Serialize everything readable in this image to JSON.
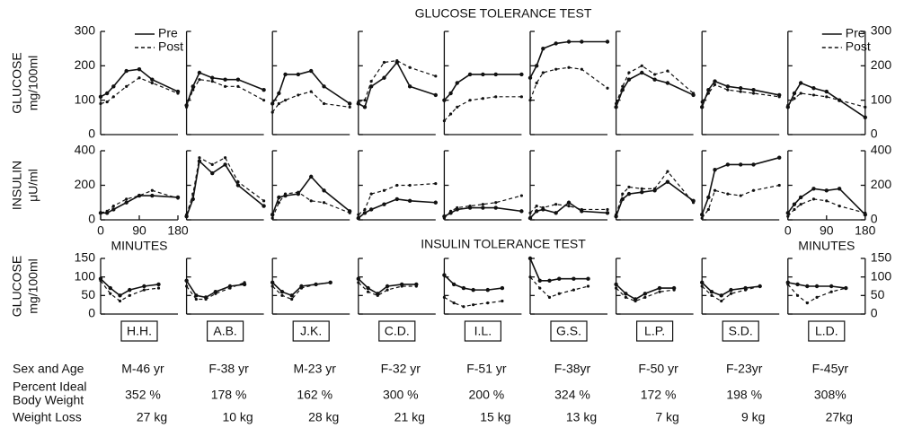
{
  "chart_data": {
    "type": "line",
    "title": "GLUCOSE TOLERANCE TEST",
    "title2": "INSULIN TOLERANCE TEST",
    "x_label": "MINUTES",
    "legend": [
      {
        "name": "Pre",
        "style": "solid"
      },
      {
        "name": "Post",
        "style": "dashed"
      }
    ],
    "rows": [
      {
        "y_label": [
          "GLUCOSE",
          "mg/100ml"
        ],
        "ylim": [
          0,
          300
        ],
        "yticks": [
          0,
          100,
          200,
          300
        ],
        "x": [
          0,
          15,
          30,
          60,
          90,
          120,
          180
        ],
        "xlim": [
          0,
          180
        ]
      },
      {
        "y_label": [
          "INSULIN",
          "μU/ml"
        ],
        "ylim": [
          0,
          400
        ],
        "yticks": [
          0,
          200,
          400
        ],
        "x": [
          0,
          15,
          30,
          60,
          90,
          120,
          180
        ],
        "xlim": [
          0,
          180
        ],
        "xticks": [
          0,
          90,
          180
        ]
      },
      {
        "y_label": [
          "GLUCOSE",
          "mg/100ml"
        ],
        "ylim": [
          0,
          150
        ],
        "yticks": [
          0,
          50,
          100,
          150
        ],
        "x": [
          0,
          10,
          20,
          30,
          45,
          60
        ],
        "xlim": [
          0,
          80
        ]
      }
    ],
    "table_labels": {
      "sex_age": "Sex and Age",
      "ibw": [
        "Percent Ideal",
        "Body Weight"
      ],
      "weight_loss": "Weight Loss"
    },
    "subjects": [
      {
        "name": "H.H.",
        "sex_age": "M-46 yr",
        "ibw": "352 %",
        "weight_loss": "27 kg",
        "panels": [
          [
            {
              "values": [
                110,
                120,
                140,
                185,
                190,
                160,
                125
              ]
            },
            {
              "values": [
                90,
                95,
                110,
                140,
                165,
                150,
                120
              ]
            }
          ],
          [
            {
              "values": [
                40,
                40,
                60,
                100,
                140,
                140,
                130
              ]
            },
            {
              "values": [
                40,
                50,
                80,
                120,
                140,
                170,
                125
              ]
            }
          ],
          [
            {
              "values": [
                95,
                70,
                50,
                65,
                75,
                80
              ]
            },
            {
              "values": [
                90,
                55,
                35,
                50,
                65,
                70
              ]
            }
          ]
        ]
      },
      {
        "name": "A.B.",
        "sex_age": "F-38 yr",
        "ibw": "178 %",
        "weight_loss": "10 kg",
        "panels": [
          [
            {
              "values": [
                85,
                140,
                180,
                165,
                160,
                160,
                130
              ]
            },
            {
              "values": [
                80,
                130,
                160,
                155,
                140,
                140,
                100
              ]
            }
          ],
          [
            {
              "values": [
                20,
                120,
                340,
                270,
                320,
                200,
                80
              ]
            },
            {
              "values": [
                30,
                150,
                360,
                320,
                360,
                220,
                110
              ]
            }
          ],
          [
            {
              "values": [
                90,
                50,
                45,
                60,
                75,
                80
              ]
            },
            {
              "values": [
                75,
                40,
                40,
                55,
                70,
                85
              ]
            }
          ]
        ]
      },
      {
        "name": "J.K.",
        "sex_age": "M-23 yr",
        "ibw": "162 %",
        "weight_loss": "28 kg",
        "panels": [
          [
            {
              "values": [
                90,
                120,
                175,
                175,
                185,
                140,
                90
              ]
            },
            {
              "values": [
                65,
                90,
                100,
                115,
                125,
                90,
                80
              ]
            }
          ],
          [
            {
              "values": [
                30,
                130,
                140,
                150,
                250,
                170,
                50
              ]
            },
            {
              "values": [
                10,
                100,
                150,
                160,
                110,
                100,
                40
              ]
            }
          ],
          [
            {
              "values": [
                85,
                60,
                50,
                75,
                80,
                85
              ]
            },
            {
              "values": [
                75,
                50,
                40,
                70,
                80,
                85
              ]
            }
          ]
        ]
      },
      {
        "name": "C.D.",
        "sex_age": "F-32 yr",
        "ibw": "300 %",
        "weight_loss": "21 kg",
        "panels": [
          [
            {
              "values": [
                90,
                80,
                140,
                165,
                210,
                140,
                115
              ]
            },
            {
              "values": [
                95,
                100,
                155,
                210,
                215,
                195,
                170
              ]
            }
          ],
          [
            {
              "values": [
                10,
                40,
                60,
                90,
                120,
                110,
                100
              ]
            },
            {
              "values": [
                30,
                60,
                150,
                170,
                200,
                200,
                210
              ]
            }
          ],
          [
            {
              "values": [
                95,
                70,
                55,
                75,
                80,
                80
              ]
            },
            {
              "values": [
                85,
                60,
                50,
                65,
                75,
                75
              ]
            }
          ]
        ]
      },
      {
        "name": "I.L.",
        "sex_age": "F-51 yr",
        "ibw": "200 %",
        "weight_loss": "15 kg",
        "panels": [
          [
            {
              "values": [
                100,
                120,
                150,
                175,
                175,
                175,
                175
              ]
            },
            {
              "values": [
                40,
                60,
                80,
                100,
                105,
                110,
                110
              ]
            }
          ],
          [
            {
              "values": [
                20,
                40,
                60,
                70,
                70,
                70,
                50
              ]
            },
            {
              "values": [
                10,
                50,
                70,
                80,
                90,
                100,
                140
              ]
            }
          ],
          [
            {
              "values": [
                105,
                80,
                70,
                65,
                65,
                70
              ]
            },
            {
              "values": [
                45,
                30,
                20,
                25,
                30,
                35
              ]
            }
          ]
        ]
      },
      {
        "name": "G.S.",
        "sex_age": "F-38yr",
        "ibw": "324 %",
        "weight_loss": "13 kg",
        "panels": [
          [
            {
              "values": [
                165,
                200,
                250,
                265,
                270,
                270,
                270
              ]
            },
            {
              "values": [
                100,
                150,
                180,
                190,
                195,
                190,
                135
              ]
            }
          ],
          [
            {
              "values": [
                10,
                50,
                60,
                40,
                100,
                50,
                40
              ]
            },
            {
              "values": [
                40,
                80,
                70,
                90,
                80,
                60,
                60
              ]
            }
          ],
          [
            {
              "values": [
                150,
                90,
                90,
                95,
                95,
                95
              ]
            },
            {
              "values": [
                100,
                70,
                45,
                55,
                65,
                75
              ]
            }
          ]
        ]
      },
      {
        "name": "L.P.",
        "sex_age": "F-50 yr",
        "ibw": "172 %",
        "weight_loss": "7 kg",
        "panels": [
          [
            {
              "values": [
                80,
                130,
                160,
                180,
                160,
                150,
                115
              ]
            },
            {
              "values": [
                90,
                140,
                180,
                200,
                175,
                185,
                120
              ]
            }
          ],
          [
            {
              "values": [
                20,
                120,
                150,
                160,
                170,
                220,
                110
              ]
            },
            {
              "values": [
                30,
                150,
                190,
                180,
                180,
                280,
                100
              ]
            }
          ],
          [
            {
              "values": [
                80,
                55,
                40,
                55,
                70,
                70
              ]
            },
            {
              "values": [
                70,
                45,
                35,
                45,
                60,
                65
              ]
            }
          ]
        ]
      },
      {
        "name": "S.D.",
        "sex_age": "F-23yr",
        "ibw": "198 %",
        "weight_loss": "9 kg",
        "panels": [
          [
            {
              "values": [
                80,
                130,
                155,
                140,
                135,
                130,
                115
              ]
            },
            {
              "values": [
                95,
                120,
                145,
                130,
                125,
                120,
                110
              ]
            }
          ],
          [
            {
              "values": [
                30,
                130,
                290,
                320,
                320,
                320,
                360
              ]
            },
            {
              "values": [
                10,
                60,
                170,
                150,
                140,
                170,
                200
              ]
            }
          ],
          [
            {
              "values": [
                85,
                60,
                50,
                65,
                70,
                75
              ]
            },
            {
              "values": [
                75,
                50,
                35,
                55,
                65,
                75
              ]
            }
          ]
        ]
      },
      {
        "name": "L.D.",
        "sex_age": "F-45yr",
        "ibw": "308%",
        "weight_loss": "27kg",
        "panels": [
          [
            {
              "values": [
                80,
                120,
                150,
                135,
                125,
                100,
                50
              ]
            },
            {
              "values": [
                85,
                105,
                120,
                115,
                110,
                100,
                80
              ]
            }
          ],
          [
            {
              "values": [
                40,
                90,
                130,
                180,
                170,
                180,
                30
              ]
            },
            {
              "values": [
                20,
                60,
                90,
                120,
                110,
                80,
                40
              ]
            }
          ],
          [
            {
              "values": [
                85,
                80,
                75,
                75,
                75,
                70
              ]
            },
            {
              "values": [
                80,
                50,
                30,
                45,
                60,
                70
              ]
            }
          ]
        ]
      }
    ]
  }
}
